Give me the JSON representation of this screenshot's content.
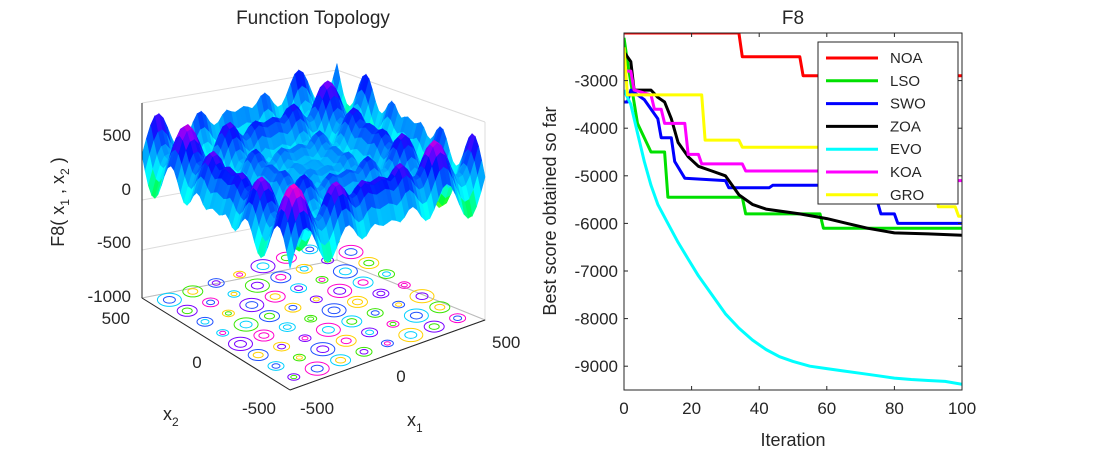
{
  "chart_data": [
    {
      "type": "surface",
      "title": "Function Topology",
      "zlabel": "F8( x₁ , x₂ )",
      "zlabel_parts": {
        "f": "F8( x",
        "s1": "1",
        "mid": " , x",
        "s2": "2",
        "end": " )"
      },
      "xlabel": {
        "base": "x",
        "sub": "1"
      },
      "ylabel": {
        "base": "x",
        "sub": "2"
      },
      "z_ticks": [
        "500",
        "0",
        "-500",
        "-1000"
      ],
      "x_ticks": [
        "-500",
        "0",
        "500"
      ],
      "y_ticks": [
        "500",
        "0",
        "-500"
      ],
      "x_range": [
        -500,
        500
      ],
      "y_range": [
        -500,
        500
      ],
      "z_range": [
        -1000,
        800
      ],
      "colormap": "hsv",
      "contour_on_floor": true
    },
    {
      "type": "line",
      "title": "F8",
      "xlabel": "Iteration",
      "ylabel": "Best score obtained so far",
      "xlim": [
        0,
        100
      ],
      "ylim": [
        -9500,
        -2000
      ],
      "x_ticks": [
        "0",
        "20",
        "40",
        "60",
        "80",
        "100"
      ],
      "y_ticks": [
        "-3000",
        "-4000",
        "-5000",
        "-6000",
        "-7000",
        "-8000",
        "-9000"
      ],
      "legend_position": "top-right",
      "series": [
        {
          "name": "NOA",
          "color": "#ff0000",
          "points": [
            [
              0,
              -2000
            ],
            [
              34,
              -2000
            ],
            [
              35,
              -2500
            ],
            [
              52,
              -2500
            ],
            [
              53,
              -2900
            ],
            [
              100,
              -2900
            ]
          ]
        },
        {
          "name": "LSO",
          "color": "#00e000",
          "points": [
            [
              0,
              -2100
            ],
            [
              1,
              -2600
            ],
            [
              4,
              -3900
            ],
            [
              8,
              -4500
            ],
            [
              12,
              -4500
            ],
            [
              13,
              -5450
            ],
            [
              35,
              -5450
            ],
            [
              36,
              -5800
            ],
            [
              58,
              -5800
            ],
            [
              59,
              -6100
            ],
            [
              100,
              -6100
            ]
          ]
        },
        {
          "name": "SWO",
          "color": "#0000ff",
          "points": [
            [
              0,
              -3450
            ],
            [
              1,
              -3450
            ],
            [
              2,
              -3200
            ],
            [
              6,
              -3400
            ],
            [
              10,
              -3800
            ],
            [
              11,
              -4200
            ],
            [
              14,
              -4200
            ],
            [
              15,
              -4700
            ],
            [
              18,
              -5050
            ],
            [
              30,
              -5100
            ],
            [
              31,
              -5250
            ],
            [
              43,
              -5250
            ],
            [
              44,
              -5200
            ],
            [
              58,
              -5200
            ],
            [
              59,
              -5550
            ],
            [
              75,
              -5550
            ],
            [
              76,
              -5800
            ],
            [
              80,
              -5800
            ],
            [
              81,
              -6000
            ],
            [
              100,
              -6000
            ]
          ]
        },
        {
          "name": "ZOA",
          "color": "#000000",
          "points": [
            [
              0,
              -2400
            ],
            [
              2,
              -2600
            ],
            [
              3,
              -3200
            ],
            [
              8,
              -3200
            ],
            [
              10,
              -3350
            ],
            [
              12,
              -3450
            ],
            [
              14,
              -3800
            ],
            [
              16,
              -4300
            ],
            [
              19,
              -4600
            ],
            [
              22,
              -4800
            ],
            [
              26,
              -4900
            ],
            [
              30,
              -5000
            ],
            [
              34,
              -5400
            ],
            [
              38,
              -5600
            ],
            [
              42,
              -5700
            ],
            [
              47,
              -5750
            ],
            [
              52,
              -5800
            ],
            [
              60,
              -5900
            ],
            [
              66,
              -6000
            ],
            [
              72,
              -6100
            ],
            [
              80,
              -6200
            ],
            [
              90,
              -6220
            ],
            [
              100,
              -6250
            ]
          ]
        },
        {
          "name": "EVO",
          "color": "#00ffff",
          "points": [
            [
              0,
              -3200
            ],
            [
              2,
              -3500
            ],
            [
              4,
              -4100
            ],
            [
              6,
              -4700
            ],
            [
              8,
              -5200
            ],
            [
              10,
              -5600
            ],
            [
              13,
              -6000
            ],
            [
              16,
              -6400
            ],
            [
              19,
              -6750
            ],
            [
              22,
              -7100
            ],
            [
              26,
              -7500
            ],
            [
              30,
              -7900
            ],
            [
              34,
              -8200
            ],
            [
              38,
              -8450
            ],
            [
              42,
              -8650
            ],
            [
              46,
              -8800
            ],
            [
              50,
              -8900
            ],
            [
              55,
              -9000
            ],
            [
              60,
              -9050
            ],
            [
              65,
              -9100
            ],
            [
              70,
              -9150
            ],
            [
              75,
              -9200
            ],
            [
              80,
              -9250
            ],
            [
              85,
              -9280
            ],
            [
              90,
              -9300
            ],
            [
              95,
              -9320
            ],
            [
              100,
              -9380
            ]
          ]
        },
        {
          "name": "KOA",
          "color": "#ff00ff",
          "points": [
            [
              0,
              -2800
            ],
            [
              2,
              -2800
            ],
            [
              3,
              -3200
            ],
            [
              8,
              -3300
            ],
            [
              9,
              -3600
            ],
            [
              11,
              -3600
            ],
            [
              12,
              -3900
            ],
            [
              18,
              -3900
            ],
            [
              19,
              -4550
            ],
            [
              22,
              -4550
            ],
            [
              23,
              -4750
            ],
            [
              35,
              -4750
            ],
            [
              36,
              -4900
            ],
            [
              64,
              -4900
            ],
            [
              65,
              -5100
            ],
            [
              100,
              -5100
            ]
          ]
        },
        {
          "name": "GRO",
          "color": "#ffff00",
          "points": [
            [
              0,
              -2300
            ],
            [
              1,
              -3300
            ],
            [
              23,
              -3300
            ],
            [
              24,
              -4250
            ],
            [
              34,
              -4250
            ],
            [
              35,
              -4400
            ],
            [
              87,
              -4400
            ],
            [
              88,
              -4950
            ],
            [
              92,
              -4950
            ],
            [
              93,
              -5650
            ],
            [
              98,
              -5650
            ],
            [
              99,
              -5850
            ],
            [
              100,
              -5850
            ]
          ]
        }
      ]
    }
  ]
}
